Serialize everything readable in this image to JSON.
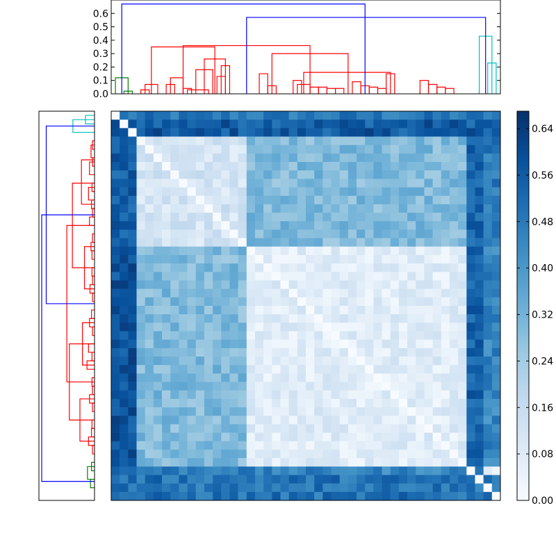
{
  "chart_data": [
    {
      "type": "dendrogram",
      "orientation": "top",
      "ylim": [
        0,
        0.7
      ],
      "yticks": [
        "0.0",
        "0.1",
        "0.2",
        "0.3",
        "0.4",
        "0.5",
        "0.6"
      ],
      "ytick_values": [
        0.0,
        0.1,
        0.2,
        0.3,
        0.4,
        0.5,
        0.6
      ],
      "leaf_count": 46,
      "cluster_colors": {
        "root": "#0000ff",
        "green": "#008000",
        "red": "#ff0000",
        "cyan": "#00bfbf"
      },
      "links": [
        {
          "left": 1.5,
          "right": 2.5,
          "h": 0.02,
          "color": "green"
        },
        {
          "left": 0.5,
          "right": 2.0,
          "h": 0.12,
          "color": "green"
        },
        {
          "left": 36.5,
          "right": 36.5,
          "h": 0.02,
          "color": "red"
        },
        {
          "left": 3.5,
          "right": 4.5,
          "h": 0.03,
          "color": "red"
        },
        {
          "left": 4.0,
          "right": 5.5,
          "h": 0.07,
          "color": "red"
        },
        {
          "left": 6.5,
          "right": 7.5,
          "h": 0.07,
          "color": "red"
        },
        {
          "left": 7.0,
          "right": 8.5,
          "h": 0.12,
          "color": "red"
        },
        {
          "left": 8.5,
          "right": 9.5,
          "h": 0.04,
          "color": "red"
        },
        {
          "left": 9.0,
          "right": 11.5,
          "h": 0.03,
          "color": "red"
        },
        {
          "left": 10.0,
          "right": 12.0,
          "h": 0.18,
          "color": "red"
        },
        {
          "left": 12.5,
          "right": 13.5,
          "h": 0.13,
          "color": "red"
        },
        {
          "left": 13.0,
          "right": 14.0,
          "h": 0.21,
          "color": "red"
        },
        {
          "left": 11.0,
          "right": 13.5,
          "h": 0.26,
          "color": "red"
        },
        {
          "left": 4.75,
          "right": 12.25,
          "h": 0.35,
          "color": "red"
        },
        {
          "left": 17.5,
          "right": 18.5,
          "h": 0.15,
          "color": "red"
        },
        {
          "left": 18.5,
          "right": 19.5,
          "h": 0.06,
          "color": "red"
        },
        {
          "left": 21.5,
          "right": 22.5,
          "h": 0.1,
          "color": "red"
        },
        {
          "left": 22.0,
          "right": 23.5,
          "h": 0.07,
          "color": "red"
        },
        {
          "left": 23.5,
          "right": 24.5,
          "h": 0.05,
          "color": "red"
        },
        {
          "left": 24.5,
          "right": 25.5,
          "h": 0.05,
          "color": "red"
        },
        {
          "left": 25.5,
          "right": 26.5,
          "h": 0.04,
          "color": "red"
        },
        {
          "left": 26.5,
          "right": 27.5,
          "h": 0.04,
          "color": "red"
        },
        {
          "left": 28.5,
          "right": 29.5,
          "h": 0.09,
          "color": "red"
        },
        {
          "left": 29.5,
          "right": 30.5,
          "h": 0.06,
          "color": "red"
        },
        {
          "left": 30.5,
          "right": 31.5,
          "h": 0.05,
          "color": "red"
        },
        {
          "left": 31.5,
          "right": 32.5,
          "h": 0.04,
          "color": "red"
        },
        {
          "left": 32.5,
          "right": 33.5,
          "h": 0.15,
          "color": "red"
        },
        {
          "left": 36.5,
          "right": 37.5,
          "h": 0.1,
          "color": "red"
        },
        {
          "left": 37.5,
          "right": 38.5,
          "h": 0.07,
          "color": "red"
        },
        {
          "left": 38.5,
          "right": 39.5,
          "h": 0.05,
          "color": "red"
        },
        {
          "left": 39.5,
          "right": 40.5,
          "h": 0.04,
          "color": "red"
        },
        {
          "left": 22.75,
          "right": 33.0,
          "h": 0.16,
          "color": "red"
        },
        {
          "left": 19.0,
          "right": 28.0,
          "h": 0.3,
          "color": "red"
        },
        {
          "left": 8.5,
          "right": 23.5,
          "h": 0.36,
          "color": "red"
        },
        {
          "left": 43.5,
          "right": 43.5,
          "h": 0.03,
          "color": "cyan"
        },
        {
          "left": 44.5,
          "right": 45.5,
          "h": 0.23,
          "color": "cyan"
        },
        {
          "left": 43.5,
          "right": 45.0,
          "h": 0.43,
          "color": "cyan"
        },
        {
          "left": 16.0,
          "right": 44.25,
          "h": 0.57,
          "color": "root"
        },
        {
          "left": 1.25,
          "right": 30.0,
          "h": 0.67,
          "color": "root"
        }
      ]
    },
    {
      "type": "dendrogram",
      "orientation": "left",
      "leaf_count": 46,
      "cluster_colors": {
        "root": "#0000ff",
        "green": "#008000",
        "red": "#ff0000",
        "cyan": "#00bfbf"
      },
      "links": [
        {
          "left": 0.5,
          "right": 1.5,
          "h": 0.18,
          "color": "cyan"
        },
        {
          "left": 1.0,
          "right": 2.5,
          "h": 0.43,
          "color": "cyan"
        },
        {
          "left": 3.5,
          "right": 4.5,
          "h": 0.04,
          "color": "red"
        },
        {
          "left": 4.0,
          "right": 5.5,
          "h": 0.07,
          "color": "red"
        },
        {
          "left": 5.5,
          "right": 6.5,
          "h": 0.04,
          "color": "red"
        },
        {
          "left": 6.0,
          "right": 7.5,
          "h": 0.1,
          "color": "red"
        },
        {
          "left": 8.5,
          "right": 9.5,
          "h": 0.05,
          "color": "red"
        },
        {
          "left": 9.0,
          "right": 10.5,
          "h": 0.12,
          "color": "red"
        },
        {
          "left": 10.5,
          "right": 11.5,
          "h": 0.06,
          "color": "red"
        },
        {
          "left": 11.5,
          "right": 12.5,
          "h": 0.04,
          "color": "red"
        },
        {
          "left": 12.5,
          "right": 13.5,
          "h": 0.1,
          "color": "red"
        },
        {
          "left": 14.5,
          "right": 15.5,
          "h": 0.04,
          "color": "red"
        },
        {
          "left": 15.5,
          "right": 16.5,
          "h": 0.07,
          "color": "red"
        },
        {
          "left": 16.5,
          "right": 17.5,
          "h": 0.05,
          "color": "red"
        },
        {
          "left": 18.5,
          "right": 19.5,
          "h": 0.05,
          "color": "red"
        },
        {
          "left": 19.5,
          "right": 20.5,
          "h": 0.04,
          "color": "red"
        },
        {
          "left": 20.5,
          "right": 21.5,
          "h": 0.09,
          "color": "red"
        },
        {
          "left": 21.5,
          "right": 22.5,
          "h": 0.04,
          "color": "red"
        },
        {
          "left": 23.5,
          "right": 24.5,
          "h": 0.06,
          "color": "red"
        },
        {
          "left": 24.5,
          "right": 25.5,
          "h": 0.1,
          "color": "red"
        },
        {
          "left": 25.5,
          "right": 26.5,
          "h": 0.04,
          "color": "red"
        },
        {
          "left": 27.5,
          "right": 28.5,
          "h": 0.12,
          "color": "red"
        },
        {
          "left": 28.5,
          "right": 29.5,
          "h": 0.05,
          "color": "red"
        },
        {
          "left": 29.5,
          "right": 30.5,
          "h": 0.15,
          "color": "red"
        },
        {
          "left": 31.5,
          "right": 32.5,
          "h": 0.05,
          "color": "red"
        },
        {
          "left": 32.5,
          "right": 33.5,
          "h": 0.04,
          "color": "red"
        },
        {
          "left": 33.5,
          "right": 34.5,
          "h": 0.1,
          "color": "red"
        },
        {
          "left": 34.5,
          "right": 35.5,
          "h": 0.04,
          "color": "red"
        },
        {
          "left": 36.5,
          "right": 37.5,
          "h": 0.05,
          "color": "red"
        },
        {
          "left": 37.5,
          "right": 38.5,
          "h": 0.06,
          "color": "red"
        },
        {
          "left": 38.5,
          "right": 39.5,
          "h": 0.12,
          "color": "red"
        },
        {
          "left": 39.5,
          "right": 40.5,
          "h": 0.04,
          "color": "red"
        },
        {
          "left": 5.75,
          "right": 11.0,
          "h": 0.26,
          "color": "red"
        },
        {
          "left": 16.0,
          "right": 21.0,
          "h": 0.2,
          "color": "red"
        },
        {
          "left": 25.0,
          "right": 30.0,
          "h": 0.24,
          "color": "red"
        },
        {
          "left": 34.0,
          "right": 39.0,
          "h": 0.29,
          "color": "red"
        },
        {
          "left": 8.5,
          "right": 18.5,
          "h": 0.44,
          "color": "red"
        },
        {
          "left": 27.5,
          "right": 36.5,
          "h": 0.5,
          "color": "red"
        },
        {
          "left": 13.5,
          "right": 32.0,
          "h": 0.55,
          "color": "red"
        },
        {
          "left": 41.5,
          "right": 42.5,
          "h": 0.06,
          "color": "green"
        },
        {
          "left": 42.0,
          "right": 43.5,
          "h": 0.14,
          "color": "green"
        },
        {
          "left": 43.5,
          "right": 44.5,
          "h": 0.08,
          "color": "green"
        },
        {
          "left": 1.75,
          "right": 22.75,
          "h": 0.96,
          "color": "root"
        },
        {
          "left": 12.25,
          "right": 43.75,
          "h": 1.05,
          "color": "root"
        }
      ]
    },
    {
      "type": "heatmap",
      "rows": 46,
      "cols": 46,
      "cmap": "Blues",
      "vmin": 0.0,
      "vmax": 0.67,
      "color_stops": [
        "#f7fbff",
        "#deebf7",
        "#c6dbef",
        "#9ecae1",
        "#6baed6",
        "#4292c6",
        "#2171b5",
        "#08519c",
        "#08306b"
      ],
      "top_dendrogram_groups": [
        0,
        0,
        0,
        1,
        1,
        1,
        1,
        1,
        1,
        1,
        1,
        1,
        1,
        1,
        1,
        1,
        2,
        2,
        2,
        2,
        2,
        2,
        2,
        2,
        2,
        2,
        2,
        2,
        2,
        2,
        2,
        2,
        2,
        2,
        2,
        2,
        2,
        2,
        2,
        2,
        2,
        2,
        3,
        3,
        3,
        3
      ],
      "group_distance": [
        [
          0.0,
          0.55,
          0.58,
          0.52
        ],
        [
          0.55,
          0.12,
          0.3,
          0.48
        ],
        [
          0.58,
          0.3,
          0.08,
          0.45
        ],
        [
          0.52,
          0.48,
          0.45,
          0.05
        ]
      ],
      "bands": [
        {
          "axis": "row",
          "from": 0,
          "to": 1,
          "value": 0.48
        },
        {
          "axis": "row",
          "from": 1,
          "to": 3,
          "value": 0.56
        },
        {
          "axis": "row",
          "from": 43,
          "to": 46,
          "value": 0.5
        },
        {
          "axis": "col",
          "from": 42,
          "to": 44,
          "value": 0.54
        }
      ],
      "colorbar": {
        "ticks": [
          "0.00",
          "0.08",
          "0.16",
          "0.24",
          "0.32",
          "0.40",
          "0.48",
          "0.56",
          "0.64"
        ],
        "tick_values": [
          0.0,
          0.08,
          0.16,
          0.24,
          0.32,
          0.4,
          0.48,
          0.56,
          0.64
        ]
      }
    }
  ]
}
